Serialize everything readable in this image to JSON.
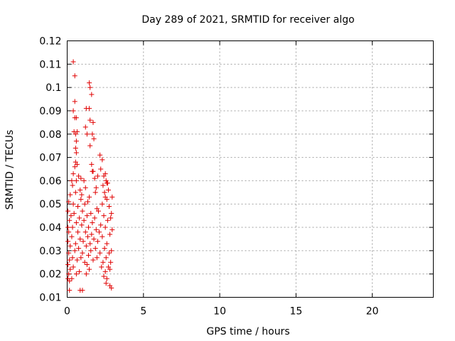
{
  "chart_data": {
    "type": "scatter",
    "title": "Day 289 of 2021, SRMTID for receiver algo",
    "xlabel": "GPS time / hours",
    "ylabel": "SRMTID / TECUs",
    "xlim": [
      0,
      24
    ],
    "ylim": [
      0.01,
      0.12
    ],
    "x_ticks": [
      0,
      5,
      10,
      15,
      20
    ],
    "x_tick_labels": [
      "0",
      "5",
      "10",
      "15",
      "20"
    ],
    "y_ticks": [
      0.01,
      0.02,
      0.03,
      0.04,
      0.05,
      0.06,
      0.07,
      0.08,
      0.09,
      0.1,
      0.11,
      0.12
    ],
    "y_tick_labels": [
      "0.01",
      "0.02",
      "0.03",
      "0.04",
      "0.05",
      "0.06",
      "0.07",
      "0.08",
      "0.09",
      "0.1",
      "0.11",
      "0.12"
    ],
    "grid": true,
    "marker": "+",
    "color": "#e00000",
    "series": [
      {
        "points": [
          [
            0.4,
            0.111
          ],
          [
            0.5,
            0.105
          ],
          [
            1.45,
            0.102
          ],
          [
            1.5,
            0.1
          ],
          [
            1.6,
            0.097
          ],
          [
            1.25,
            0.091
          ],
          [
            1.45,
            0.091
          ],
          [
            0.5,
            0.094
          ],
          [
            0.4,
            0.09
          ],
          [
            0.5,
            0.087
          ],
          [
            0.6,
            0.087
          ],
          [
            1.5,
            0.086
          ],
          [
            1.7,
            0.085
          ],
          [
            1.2,
            0.083
          ],
          [
            0.45,
            0.081
          ],
          [
            0.55,
            0.08
          ],
          [
            0.65,
            0.081
          ],
          [
            1.3,
            0.08
          ],
          [
            1.65,
            0.08
          ],
          [
            1.75,
            0.078
          ],
          [
            0.6,
            0.077
          ],
          [
            1.5,
            0.075
          ],
          [
            0.55,
            0.074
          ],
          [
            0.6,
            0.072
          ],
          [
            2.15,
            0.071
          ],
          [
            0.55,
            0.068
          ],
          [
            0.65,
            0.067
          ],
          [
            1.6,
            0.067
          ],
          [
            2.3,
            0.069
          ],
          [
            0.5,
            0.066
          ],
          [
            1.65,
            0.064
          ],
          [
            1.7,
            0.064
          ],
          [
            2.2,
            0.065
          ],
          [
            2.5,
            0.063
          ],
          [
            0.4,
            0.063
          ],
          [
            0.75,
            0.062
          ],
          [
            0.9,
            0.061
          ],
          [
            2.0,
            0.062
          ],
          [
            2.4,
            0.062
          ],
          [
            0.3,
            0.06
          ],
          [
            0.6,
            0.06
          ],
          [
            1.1,
            0.06
          ],
          [
            1.8,
            0.061
          ],
          [
            2.55,
            0.06
          ],
          [
            2.65,
            0.059
          ],
          [
            0.35,
            0.058
          ],
          [
            1.9,
            0.057
          ],
          [
            2.35,
            0.058
          ],
          [
            2.6,
            0.059
          ],
          [
            0.85,
            0.056
          ],
          [
            1.2,
            0.057
          ],
          [
            1.85,
            0.055
          ],
          [
            2.45,
            0.055
          ],
          [
            2.7,
            0.056
          ],
          [
            0.2,
            0.054
          ],
          [
            0.55,
            0.055
          ],
          [
            0.95,
            0.054
          ],
          [
            1.45,
            0.053
          ],
          [
            2.5,
            0.053
          ],
          [
            2.95,
            0.053
          ],
          [
            0.1,
            0.051
          ],
          [
            0.4,
            0.05
          ],
          [
            0.9,
            0.052
          ],
          [
            1.35,
            0.051
          ],
          [
            2.3,
            0.05
          ],
          [
            2.6,
            0.052
          ],
          [
            0.7,
            0.049
          ],
          [
            1.15,
            0.05
          ],
          [
            1.95,
            0.048
          ],
          [
            2.75,
            0.049
          ],
          [
            0.05,
            0.047
          ],
          [
            0.45,
            0.046
          ],
          [
            1.0,
            0.047
          ],
          [
            1.55,
            0.046
          ],
          [
            2.05,
            0.047
          ],
          [
            2.9,
            0.046
          ],
          [
            0.25,
            0.045
          ],
          [
            0.8,
            0.044
          ],
          [
            1.3,
            0.045
          ],
          [
            1.8,
            0.044
          ],
          [
            2.4,
            0.045
          ],
          [
            2.85,
            0.044
          ],
          [
            0.15,
            0.043
          ],
          [
            0.6,
            0.042
          ],
          [
            1.1,
            0.043
          ],
          [
            1.65,
            0.042
          ],
          [
            2.2,
            0.041
          ],
          [
            2.65,
            0.043
          ],
          [
            0.05,
            0.04
          ],
          [
            0.35,
            0.04
          ],
          [
            0.95,
            0.041
          ],
          [
            1.4,
            0.04
          ],
          [
            1.9,
            0.039
          ],
          [
            2.5,
            0.04
          ],
          [
            2.95,
            0.039
          ],
          [
            0.1,
            0.038
          ],
          [
            0.7,
            0.038
          ],
          [
            1.2,
            0.038
          ],
          [
            1.6,
            0.037
          ],
          [
            2.1,
            0.038
          ],
          [
            2.8,
            0.037
          ],
          [
            0.3,
            0.036
          ],
          [
            0.85,
            0.035
          ],
          [
            1.35,
            0.036
          ],
          [
            1.75,
            0.035
          ],
          [
            2.3,
            0.036
          ],
          [
            0.05,
            0.034
          ],
          [
            0.55,
            0.033
          ],
          [
            1.05,
            0.034
          ],
          [
            1.5,
            0.033
          ],
          [
            2.0,
            0.034
          ],
          [
            2.6,
            0.033
          ],
          [
            0.2,
            0.032
          ],
          [
            0.75,
            0.031
          ],
          [
            1.25,
            0.032
          ],
          [
            1.85,
            0.031
          ],
          [
            2.45,
            0.031
          ],
          [
            2.9,
            0.03
          ],
          [
            0.1,
            0.029
          ],
          [
            0.5,
            0.03
          ],
          [
            1.0,
            0.029
          ],
          [
            1.55,
            0.03
          ],
          [
            2.15,
            0.029
          ],
          [
            2.75,
            0.029
          ],
          [
            0.35,
            0.027
          ],
          [
            0.9,
            0.027
          ],
          [
            1.4,
            0.028
          ],
          [
            1.95,
            0.027
          ],
          [
            2.55,
            0.027
          ],
          [
            0.15,
            0.026
          ],
          [
            0.65,
            0.026
          ],
          [
            1.15,
            0.025
          ],
          [
            1.7,
            0.026
          ],
          [
            2.35,
            0.025
          ],
          [
            2.85,
            0.025
          ],
          [
            0.05,
            0.024
          ],
          [
            0.4,
            0.023
          ],
          [
            1.3,
            0.024
          ],
          [
            2.25,
            0.023
          ],
          [
            2.7,
            0.023
          ],
          [
            0.2,
            0.022
          ],
          [
            0.8,
            0.021
          ],
          [
            1.45,
            0.022
          ],
          [
            2.5,
            0.021
          ],
          [
            2.8,
            0.022
          ],
          [
            0.1,
            0.02
          ],
          [
            0.6,
            0.02
          ],
          [
            1.25,
            0.02
          ],
          [
            2.4,
            0.019
          ],
          [
            0.05,
            0.018
          ],
          [
            0.3,
            0.018
          ],
          [
            2.6,
            0.018
          ],
          [
            0.15,
            0.017
          ],
          [
            2.55,
            0.016
          ],
          [
            2.8,
            0.015
          ],
          [
            2.9,
            0.014
          ],
          [
            0.85,
            0.013
          ],
          [
            1.0,
            0.013
          ],
          [
            0.15,
            0.013
          ]
        ]
      }
    ]
  }
}
